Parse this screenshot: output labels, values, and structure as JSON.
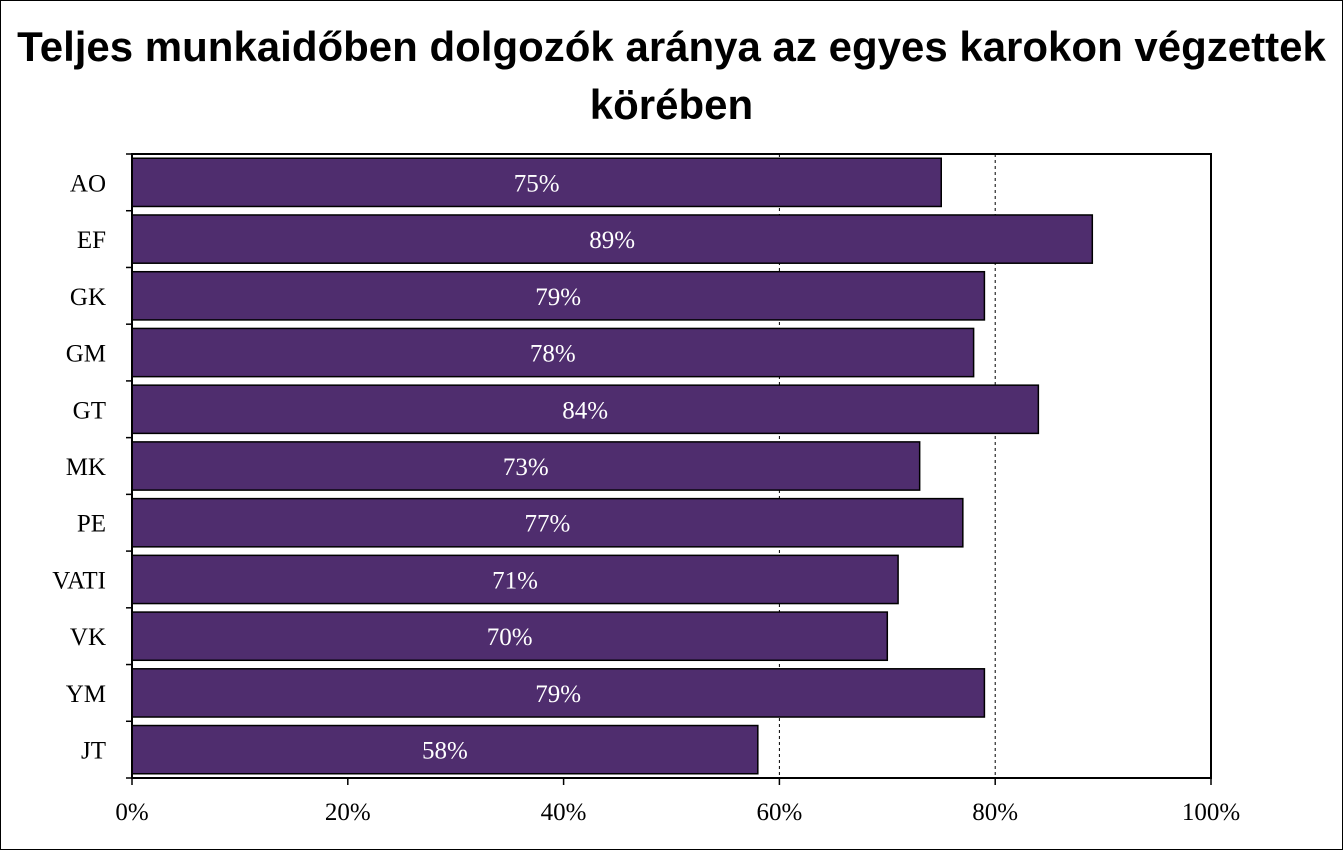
{
  "chart_data": {
    "type": "bar",
    "orientation": "horizontal",
    "title": "Teljes munkaidőben dolgozók aránya az egyes karokon végzettek körében",
    "categories": [
      "AO",
      "EF",
      "GK",
      "GM",
      "GT",
      "MK",
      "PE",
      "VATI",
      "VK",
      "YM",
      "JT"
    ],
    "values": [
      75,
      89,
      79,
      78,
      84,
      73,
      77,
      71,
      70,
      79,
      58
    ],
    "value_labels": [
      "75%",
      "89%",
      "79%",
      "78%",
      "84%",
      "73%",
      "77%",
      "71%",
      "70%",
      "79%",
      "58%"
    ],
    "xticks": [
      0,
      20,
      40,
      60,
      80,
      100
    ],
    "xtick_labels": [
      "0%",
      "20%",
      "40%",
      "60%",
      "80%",
      "100%"
    ],
    "xlim": [
      0,
      100
    ],
    "gridlines": [
      60,
      80
    ],
    "grid_style": "dashed",
    "legend": "none",
    "colors": {
      "bar": "#4f2d6e",
      "bar_edge": "#000000",
      "label": "#ffffff"
    }
  }
}
